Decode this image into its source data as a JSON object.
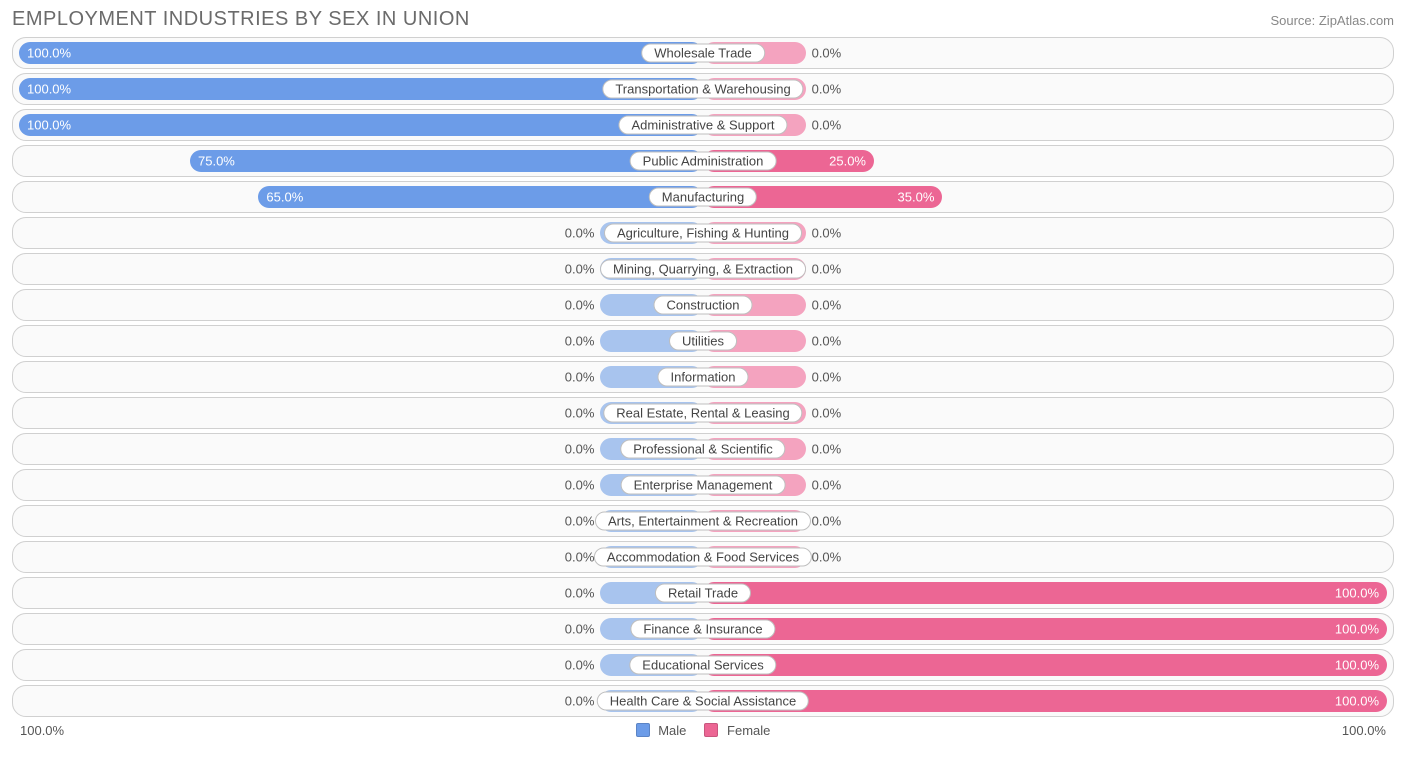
{
  "title": "EMPLOYMENT INDUSTRIES BY SEX IN UNION",
  "source": "Source: ZipAtlas.com",
  "chart": {
    "type": "diverging-bar",
    "default_male_width_pct": 15,
    "default_female_width_pct": 15,
    "colors": {
      "male_strong": "#6c9ce8",
      "male_light": "#a8c4ee",
      "female_strong": "#ec6694",
      "female_light": "#f4a3bf",
      "row_border": "#d0d0d0",
      "row_bg": "#fafafa",
      "text": "#555555",
      "label_border": "#bfbfbf"
    },
    "axis": {
      "left": "100.0%",
      "right": "100.0%"
    },
    "legend": {
      "male": "Male",
      "female": "Female"
    },
    "rows": [
      {
        "label": "Wholesale Trade",
        "male": 100.0,
        "female": 0.0
      },
      {
        "label": "Transportation & Warehousing",
        "male": 100.0,
        "female": 0.0
      },
      {
        "label": "Administrative & Support",
        "male": 100.0,
        "female": 0.0
      },
      {
        "label": "Public Administration",
        "male": 75.0,
        "female": 25.0
      },
      {
        "label": "Manufacturing",
        "male": 65.0,
        "female": 35.0
      },
      {
        "label": "Agriculture, Fishing & Hunting",
        "male": 0.0,
        "female": 0.0
      },
      {
        "label": "Mining, Quarrying, & Extraction",
        "male": 0.0,
        "female": 0.0
      },
      {
        "label": "Construction",
        "male": 0.0,
        "female": 0.0
      },
      {
        "label": "Utilities",
        "male": 0.0,
        "female": 0.0
      },
      {
        "label": "Information",
        "male": 0.0,
        "female": 0.0
      },
      {
        "label": "Real Estate, Rental & Leasing",
        "male": 0.0,
        "female": 0.0
      },
      {
        "label": "Professional & Scientific",
        "male": 0.0,
        "female": 0.0
      },
      {
        "label": "Enterprise Management",
        "male": 0.0,
        "female": 0.0
      },
      {
        "label": "Arts, Entertainment & Recreation",
        "male": 0.0,
        "female": 0.0
      },
      {
        "label": "Accommodation & Food Services",
        "male": 0.0,
        "female": 0.0
      },
      {
        "label": "Retail Trade",
        "male": 0.0,
        "female": 100.0
      },
      {
        "label": "Finance & Insurance",
        "male": 0.0,
        "female": 100.0
      },
      {
        "label": "Educational Services",
        "male": 0.0,
        "female": 100.0
      },
      {
        "label": "Health Care & Social Assistance",
        "male": 0.0,
        "female": 100.0
      }
    ]
  }
}
